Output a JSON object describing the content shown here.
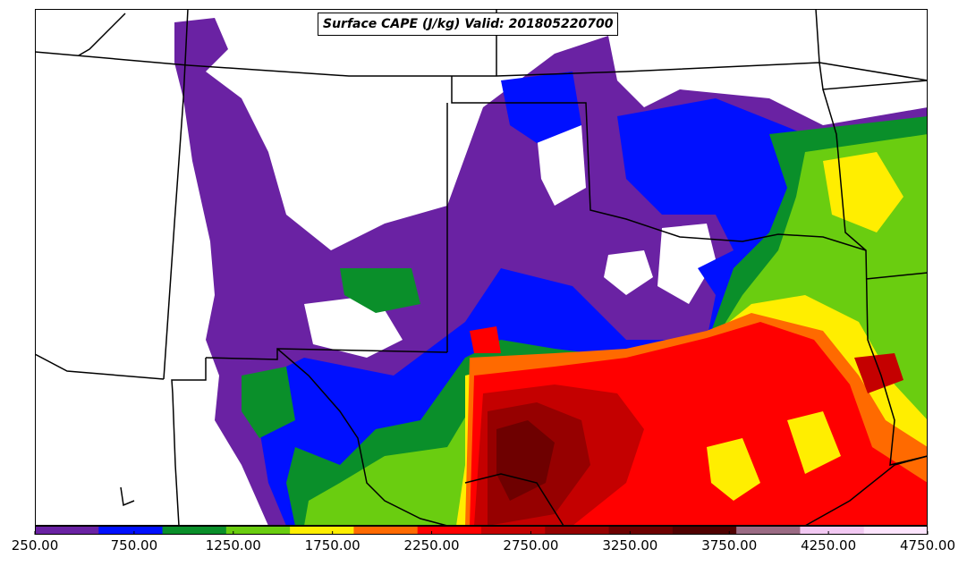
{
  "title": "Surface CAPE (J/kg) Valid: 201805220700",
  "colorbar": {
    "colors": [
      "#6a22a3",
      "#0010ff",
      "#0a8f2a",
      "#6acd10",
      "#ffee00",
      "#ff6a00",
      "#ff0000",
      "#c40000",
      "#960000",
      "#6e0000",
      "#500000",
      "#9b6b84",
      "#f2c8f2",
      "#fde4fd"
    ],
    "tick_labels": [
      "250.00",
      "750.00",
      "1250.00",
      "1750.00",
      "2250.00",
      "2750.00",
      "3250.00",
      "3750.00",
      "4250.00",
      "4750.00"
    ]
  }
}
